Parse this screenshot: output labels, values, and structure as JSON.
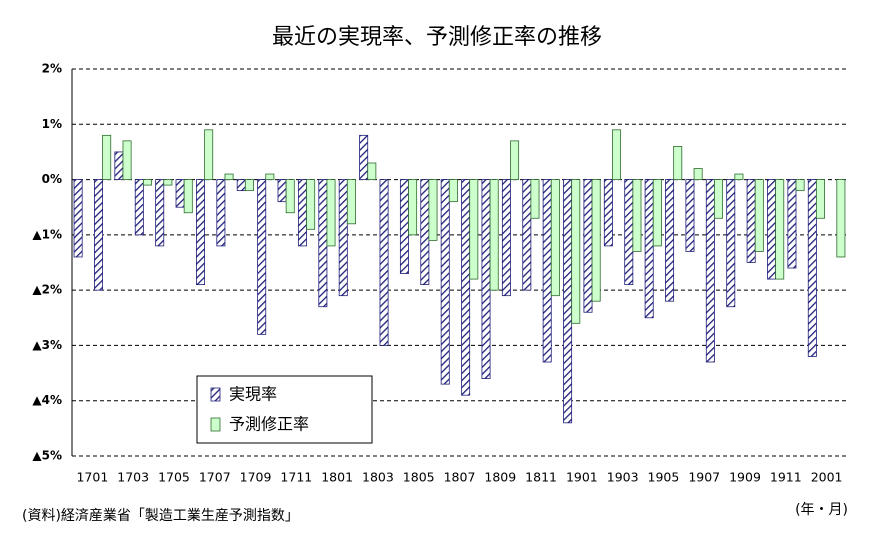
{
  "chart_data": {
    "type": "bar",
    "title": "最近の実現率、予測修正率の推移",
    "categories": [
      "1701",
      null,
      "1703",
      null,
      "1705",
      null,
      "1707",
      null,
      "1709",
      null,
      "1711",
      null,
      "1801",
      null,
      "1803",
      null,
      "1805",
      null,
      "1807",
      null,
      "1809",
      null,
      "1811",
      null,
      "1901",
      null,
      "1903",
      null,
      "1905",
      null,
      "1907",
      null,
      "1909",
      null,
      "1911",
      null,
      "2001",
      null
    ],
    "series": [
      {
        "name": "実現率",
        "color": "#1f1f7a",
        "values": [
          -1.4,
          -2.0,
          0.5,
          -1.0,
          -1.2,
          -0.5,
          -1.9,
          -1.2,
          -0.2,
          -2.8,
          -0.4,
          -1.2,
          -2.3,
          -2.1,
          0.8,
          -3.0,
          -1.7,
          -1.9,
          -3.7,
          -3.9,
          -3.6,
          -2.1,
          -2.0,
          -3.3,
          -4.4,
          -2.4,
          -1.2,
          -1.9,
          -2.5,
          -2.2,
          -1.3,
          -3.3,
          -2.3,
          -1.5,
          -1.8,
          -1.6,
          -3.2,
          null
        ]
      },
      {
        "name": "予測修正率",
        "color": "#ccffcc",
        "values": [
          null,
          0.8,
          0.7,
          -0.1,
          -0.1,
          -0.6,
          0.9,
          0.1,
          -0.2,
          0.1,
          -0.6,
          -0.9,
          -1.2,
          -0.8,
          0.3,
          null,
          -1.0,
          -1.1,
          -0.4,
          -1.8,
          -2.0,
          0.7,
          -0.7,
          -2.1,
          -2.6,
          -2.2,
          0.9,
          -1.3,
          -1.2,
          0.6,
          0.2,
          -0.7,
          0.1,
          -1.3,
          -1.8,
          -0.2,
          -0.7,
          -1.4
        ]
      }
    ],
    "ylim": [
      -5,
      2
    ],
    "yticks": [
      {
        "value": -5,
        "label": "▲5%"
      },
      {
        "value": -4,
        "label": "▲4%"
      },
      {
        "value": -3,
        "label": "▲3%"
      },
      {
        "value": -2,
        "label": "▲2%"
      },
      {
        "value": -1,
        "label": "▲1%"
      },
      {
        "value": 0,
        "label": "0%"
      },
      {
        "value": 1,
        "label": "1%"
      },
      {
        "value": 2,
        "label": "2%"
      }
    ],
    "grid": true,
    "legend": "lower-left",
    "source": "(資料)経済産業省「製造工業生産予測指数」",
    "unit_note": "(年・月)"
  }
}
